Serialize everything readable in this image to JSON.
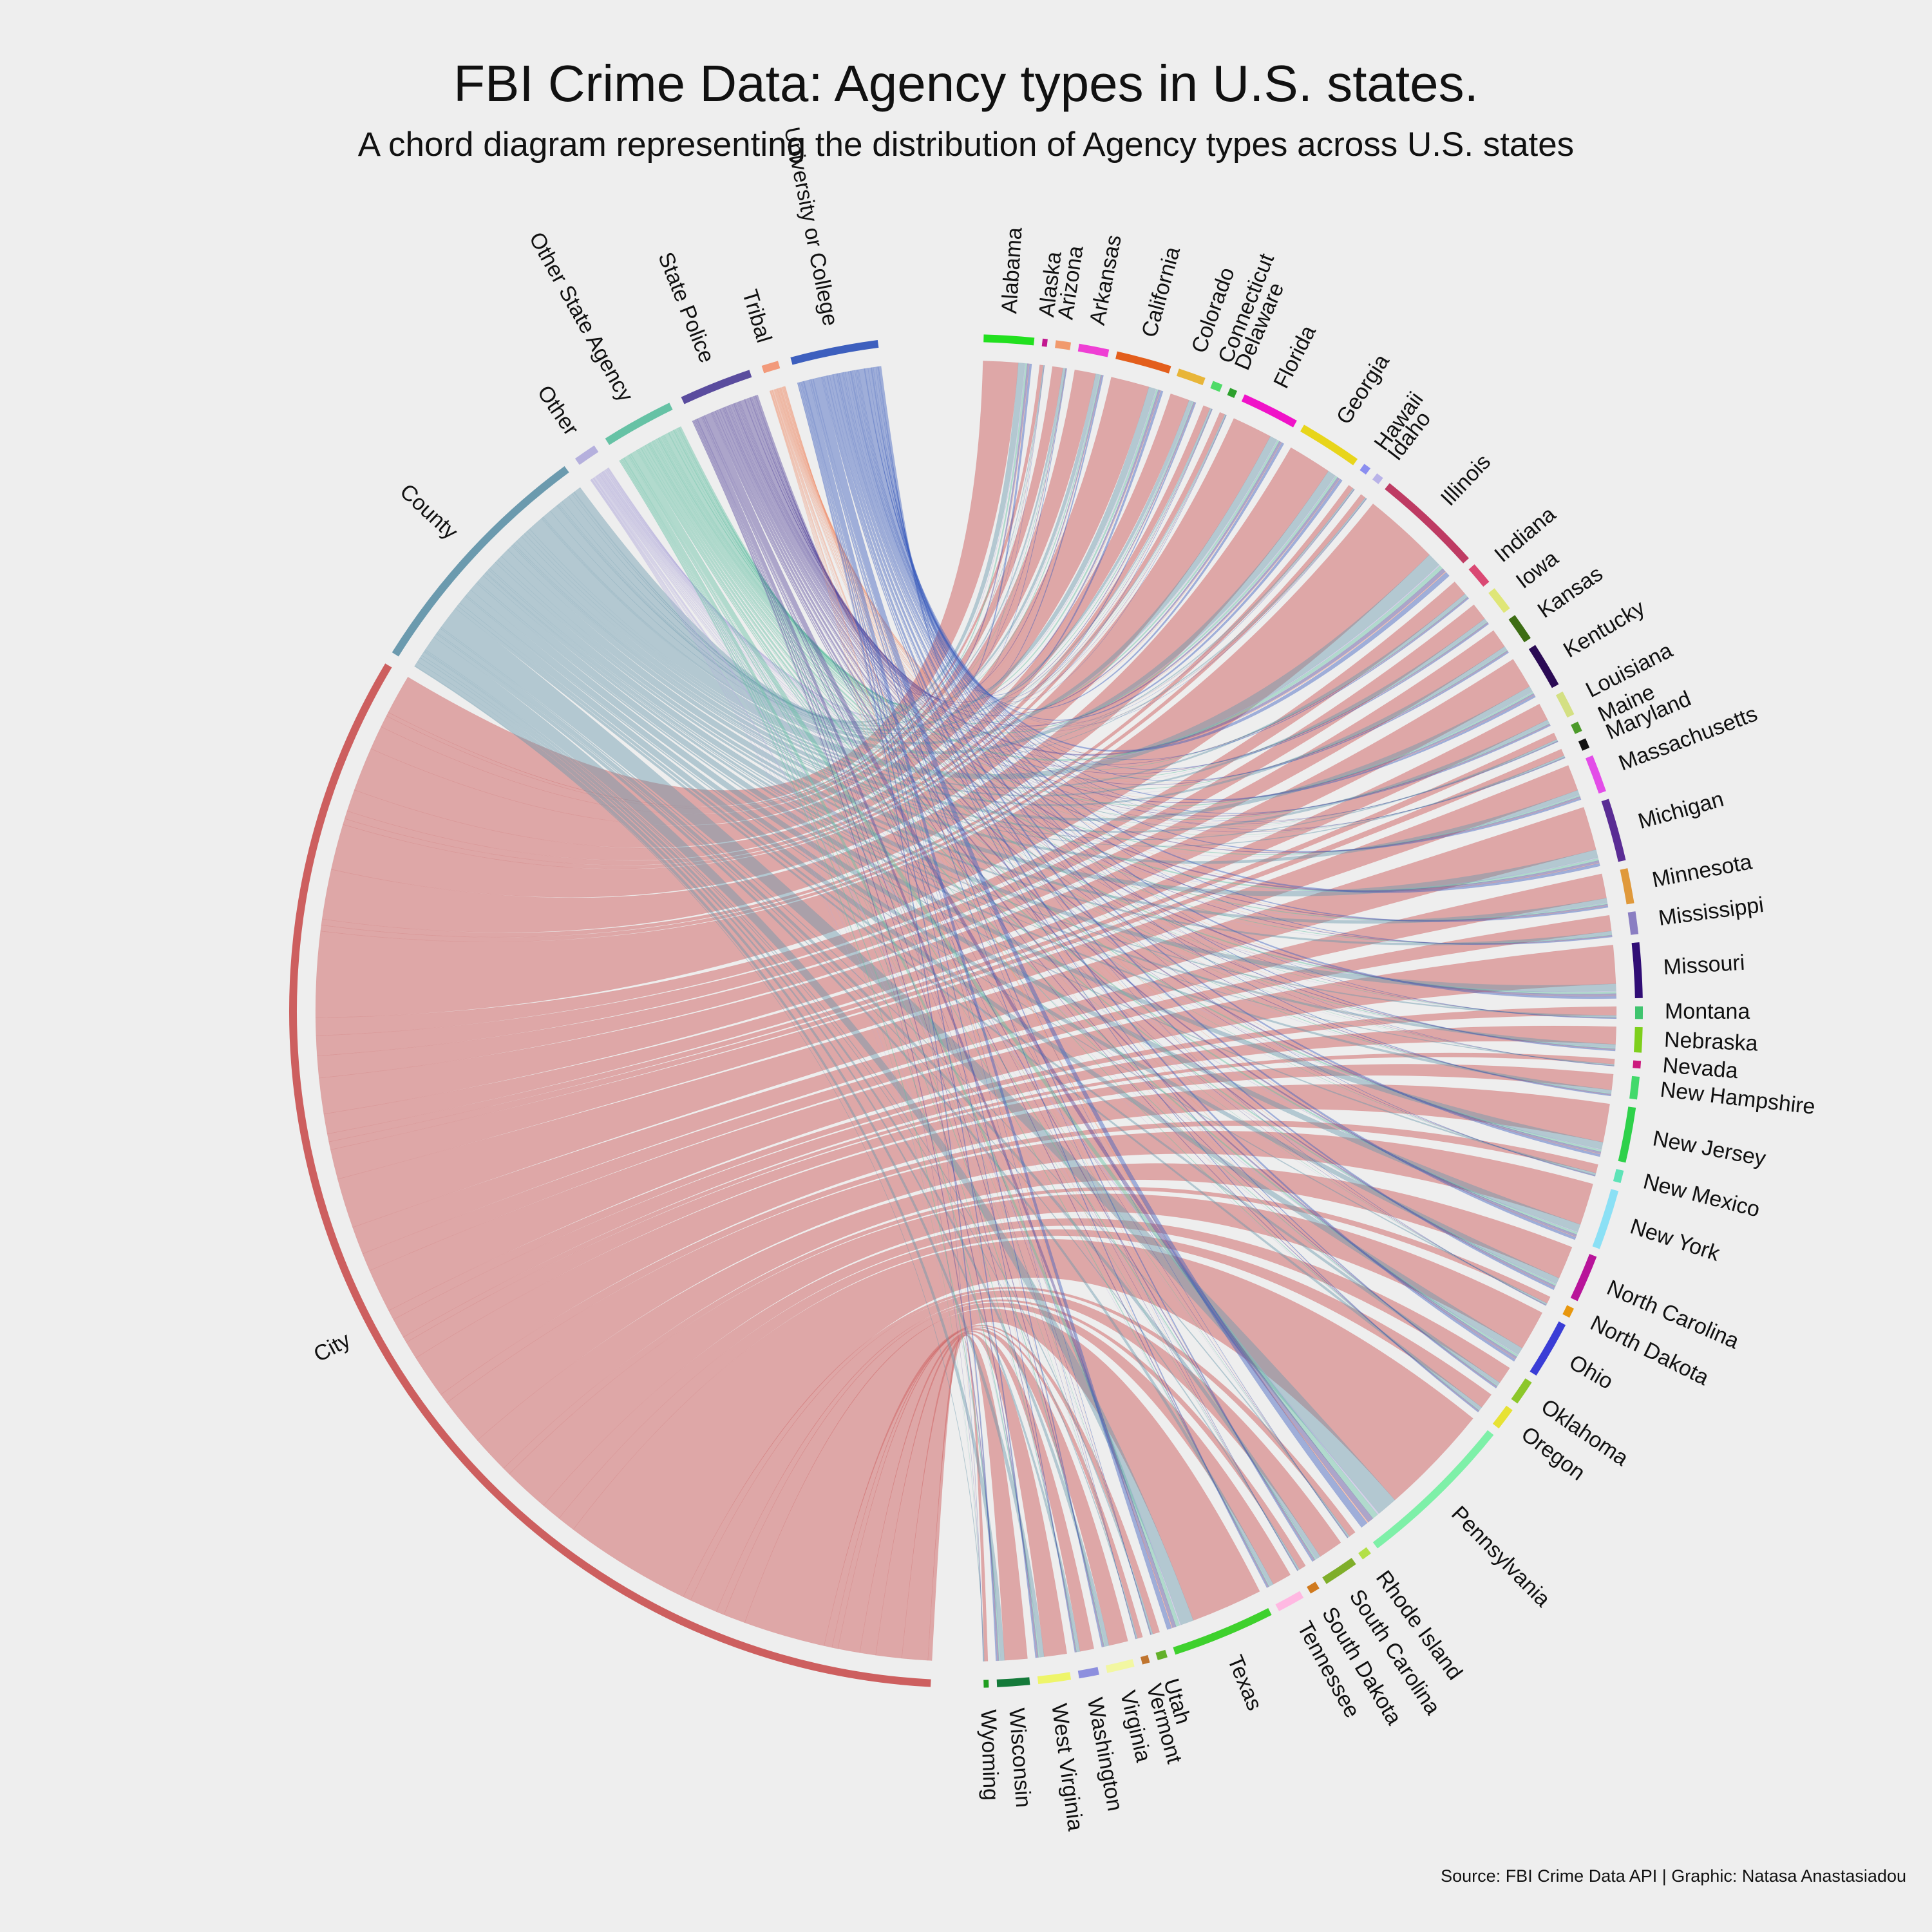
{
  "title": "FBI Crime Data: Agency types in U.S. states.",
  "subtitle": "A chord diagram representing the distribution of Agency types across U.S. states",
  "caption": "Source: FBI Crime Data API | Graphic: Natasa Anastasiadou",
  "chart_data": {
    "type": "chord",
    "agency_types": [
      {
        "name": "City",
        "color": "#cd5f5f",
        "weight": 18000
      },
      {
        "name": "County",
        "color": "#6b9aae",
        "weight": 3300
      },
      {
        "name": "Other",
        "color": "#b5b0dd",
        "weight": 300
      },
      {
        "name": "Other State Agency",
        "color": "#66c2a5",
        "weight": 950
      },
      {
        "name": "State Police",
        "color": "#5a4c9e",
        "weight": 950
      },
      {
        "name": "Tribal",
        "color": "#f29a7b",
        "weight": 220
      },
      {
        "name": "University or College",
        "color": "#3d5fbe",
        "weight": 1150
      }
    ],
    "states": [
      {
        "name": "Alabama",
        "color": "#22e01f",
        "weight": 200
      },
      {
        "name": "Alaska",
        "color": "#c2178f",
        "weight": 20
      },
      {
        "name": "Arizona",
        "color": "#f19a6d",
        "weight": 60
      },
      {
        "name": "Arkansas",
        "color": "#ef3fd4",
        "weight": 120
      },
      {
        "name": "California",
        "color": "#e35e1c",
        "weight": 220
      },
      {
        "name": "Colorado",
        "color": "#e8b538",
        "weight": 110
      },
      {
        "name": "Connecticut",
        "color": "#4fdb68",
        "weight": 40
      },
      {
        "name": "Delaware",
        "color": "#2ca02c",
        "weight": 30
      },
      {
        "name": "Florida",
        "color": "#f012c8",
        "weight": 230
      },
      {
        "name": "Georgia",
        "color": "#e8d51a",
        "weight": 250
      },
      {
        "name": "Hawaii",
        "color": "#8a8ef0",
        "weight": 30
      },
      {
        "name": "Idaho",
        "color": "#b9b3e8",
        "weight": 30
      },
      {
        "name": "Illinois",
        "color": "#be3b63",
        "weight": 430
      },
      {
        "name": "Indiana",
        "color": "#da4873",
        "weight": 90
      },
      {
        "name": "Iowa",
        "color": "#dfe677",
        "weight": 100
      },
      {
        "name": "Kansas",
        "color": "#3d6d14",
        "weight": 110
      },
      {
        "name": "Kentucky",
        "color": "#2a0a54",
        "weight": 180
      },
      {
        "name": "Louisiana",
        "color": "#d4e083",
        "weight": 100
      },
      {
        "name": "Maine",
        "color": "#4c9a2a",
        "weight": 40
      },
      {
        "name": "Maryland",
        "color": "#111111",
        "weight": 40
      },
      {
        "name": "Massachusetts",
        "color": "#e34de8",
        "weight": 150
      },
      {
        "name": "Michigan",
        "color": "#5a2c94",
        "weight": 250
      },
      {
        "name": "Minnesota",
        "color": "#e0993b",
        "weight": 140
      },
      {
        "name": "Mississippi",
        "color": "#8a7ec2",
        "weight": 90
      },
      {
        "name": "Missouri",
        "color": "#300d75",
        "weight": 220
      },
      {
        "name": "Montana",
        "color": "#3fc46e",
        "weight": 50
      },
      {
        "name": "Nebraska",
        "color": "#7ecf1c",
        "weight": 100
      },
      {
        "name": "Nevada",
        "color": "#cc1a7d",
        "weight": 30
      },
      {
        "name": "New Hampshire",
        "color": "#42d96b",
        "weight": 90
      },
      {
        "name": "New Jersey",
        "color": "#2ed14a",
        "weight": 220
      },
      {
        "name": "New Mexico",
        "color": "#5ee3b7",
        "weight": 50
      },
      {
        "name": "New York",
        "color": "#8be0f5",
        "weight": 240
      },
      {
        "name": "North Carolina",
        "color": "#b8149a",
        "weight": 190
      },
      {
        "name": "North Dakota",
        "color": "#e8970e",
        "weight": 40
      },
      {
        "name": "Ohio",
        "color": "#3a3dd6",
        "weight": 230
      },
      {
        "name": "Oklahoma",
        "color": "#8cc72a",
        "weight": 100
      },
      {
        "name": "Oregon",
        "color": "#e7e234",
        "weight": 90
      },
      {
        "name": "Pennsylvania",
        "color": "#7ef0a8",
        "weight": 640
      },
      {
        "name": "Rhode Island",
        "color": "#b3e048",
        "weight": 40
      },
      {
        "name": "South Carolina",
        "color": "#7fae2a",
        "weight": 140
      },
      {
        "name": "South Dakota",
        "color": "#d07a1e",
        "weight": 40
      },
      {
        "name": "Tennessee",
        "color": "#ffb8e2",
        "weight": 110
      },
      {
        "name": "Texas",
        "color": "#3ed12d",
        "weight": 410
      },
      {
        "name": "Utah",
        "color": "#63b02a",
        "weight": 40
      },
      {
        "name": "Vermont",
        "color": "#c0752f",
        "weight": 30
      },
      {
        "name": "Virginia",
        "color": "#f2f7a1",
        "weight": 110
      },
      {
        "name": "Washington",
        "color": "#8d8fde",
        "weight": 80
      },
      {
        "name": "West Virginia",
        "color": "#eef569",
        "weight": 130
      },
      {
        "name": "Wisconsin",
        "color": "#147a3a",
        "weight": 130
      },
      {
        "name": "Wyoming",
        "color": "#1f9e1f",
        "weight": 20
      }
    ]
  }
}
